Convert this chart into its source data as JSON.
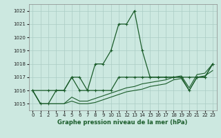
{
  "title": "Graphe pression niveau de la mer (hPa)",
  "background_color": "#cce8e0",
  "grid_color": "#aaccc4",
  "line_color": "#1a5c2a",
  "xlim": [
    -0.5,
    23.5
  ],
  "ylim": [
    1014.5,
    1022.5
  ],
  "yticks": [
    1015,
    1016,
    1017,
    1018,
    1019,
    1020,
    1021,
    1022
  ],
  "xticks": [
    0,
    1,
    2,
    3,
    4,
    5,
    6,
    7,
    8,
    9,
    10,
    11,
    12,
    13,
    14,
    15,
    16,
    17,
    18,
    19,
    20,
    21,
    22,
    23
  ],
  "series": [
    {
      "x": [
        0,
        1,
        2,
        3,
        4,
        5,
        6,
        7,
        8,
        9,
        10,
        11,
        12,
        13,
        14,
        15,
        16,
        17,
        18,
        19,
        20,
        21,
        22,
        23
      ],
      "y": [
        1016,
        1015,
        1015,
        1016,
        1016,
        1017,
        1017,
        1016,
        1018,
        1018,
        1019,
        1021,
        1021,
        1022,
        1019,
        1017,
        1017,
        1017,
        1017,
        1017,
        1016,
        1017,
        1017,
        1018
      ],
      "marker": true,
      "linewidth": 0.9
    },
    {
      "x": [
        0,
        2,
        3,
        4,
        5,
        6,
        7,
        8,
        9,
        10,
        11,
        12,
        13,
        14,
        15,
        16,
        17,
        18,
        19,
        20,
        21,
        22,
        23
      ],
      "y": [
        1016,
        1016,
        1016,
        1016,
        1017,
        1016,
        1016,
        1016,
        1016,
        1016,
        1017,
        1017,
        1017,
        1017,
        1017,
        1017,
        1017,
        1017,
        1017,
        1017,
        1017,
        1017,
        1018
      ],
      "marker": true,
      "linewidth": 0.9
    },
    {
      "x": [
        0,
        1,
        2,
        3,
        4,
        5,
        6,
        7,
        8,
        9,
        10,
        11,
        12,
        13,
        14,
        15,
        16,
        17,
        18,
        19,
        20,
        21,
        22,
        23
      ],
      "y": [
        1016,
        1015,
        1015,
        1015,
        1015,
        1015.5,
        1015.2,
        1015.2,
        1015.4,
        1015.6,
        1015.8,
        1016,
        1016.2,
        1016.3,
        1016.5,
        1016.6,
        1016.7,
        1016.8,
        1017,
        1017.1,
        1016.2,
        1017.2,
        1017.3,
        1018
      ],
      "marker": false,
      "linewidth": 0.8
    },
    {
      "x": [
        0,
        1,
        2,
        3,
        4,
        5,
        6,
        7,
        8,
        9,
        10,
        11,
        12,
        13,
        14,
        15,
        16,
        17,
        18,
        19,
        20,
        21,
        22,
        23
      ],
      "y": [
        1016,
        1015,
        1015,
        1015,
        1015,
        1015.2,
        1015,
        1015,
        1015.1,
        1015.3,
        1015.5,
        1015.7,
        1015.9,
        1016,
        1016.1,
        1016.3,
        1016.4,
        1016.5,
        1016.8,
        1016.9,
        1016,
        1017,
        1017.1,
        1017.5
      ],
      "marker": false,
      "linewidth": 0.8
    }
  ]
}
